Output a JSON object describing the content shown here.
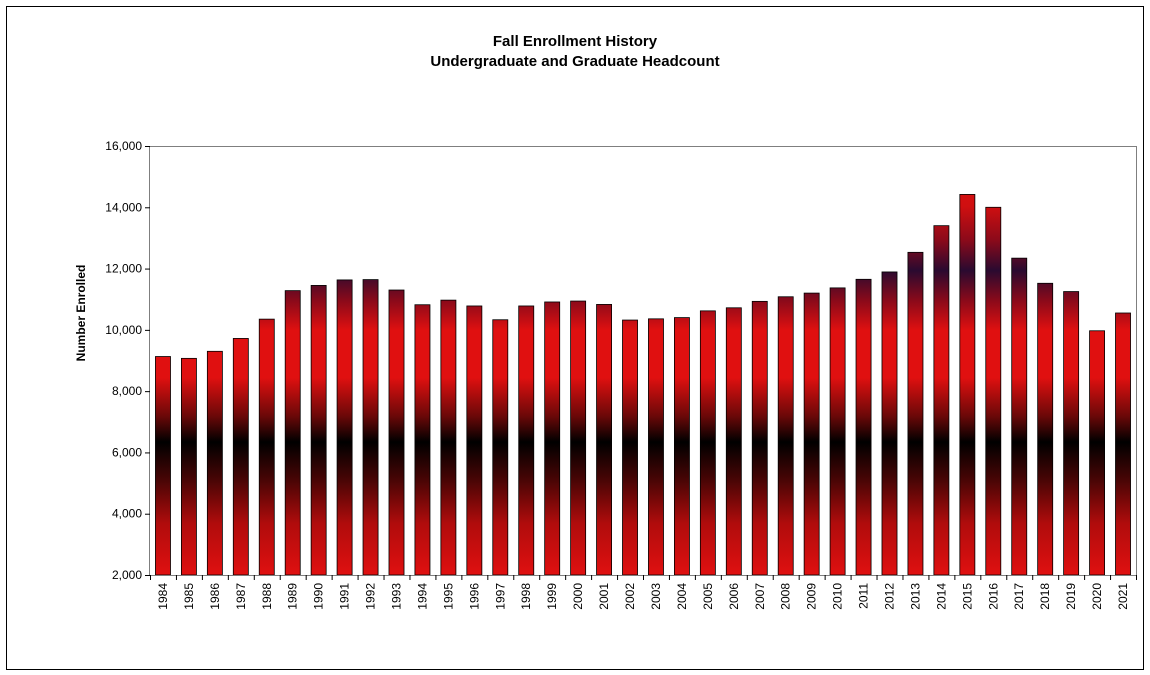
{
  "chart_data": {
    "type": "bar",
    "title": "Fall Enrollment  History",
    "subtitle": "Undergraduate and Graduate Headcount",
    "xlabel": "",
    "ylabel": "Number Enrolled",
    "ylim": [
      2000,
      16000
    ],
    "yticks": [
      "2,000",
      "4,000",
      "6,000",
      "8,000",
      "10,000",
      "12,000",
      "14,000",
      "16,000"
    ],
    "grid": false,
    "legend": "none",
    "colors": {
      "bar_main": "#e01010",
      "bar_dark": "#000000",
      "bar_mid": "#2a0a30",
      "plot_border": "#7f7f7f"
    },
    "categories": [
      "1984",
      "1985",
      "1986",
      "1987",
      "1988",
      "1989",
      "1990",
      "1991",
      "1992",
      "1993",
      "1994",
      "1995",
      "1996",
      "1997",
      "1998",
      "1999",
      "2000",
      "2001",
      "2002",
      "2003",
      "2004",
      "2005",
      "2006",
      "2007",
      "2008",
      "2009",
      "2010",
      "2011",
      "2012",
      "2013",
      "2014",
      "2015",
      "2016",
      "2017",
      "2018",
      "2019",
      "2020",
      "2021"
    ],
    "values": [
      9130,
      9070,
      9300,
      9720,
      10350,
      11280,
      11450,
      11630,
      11640,
      11300,
      10820,
      10970,
      10780,
      10330,
      10780,
      10910,
      10940,
      10830,
      10320,
      10360,
      10400,
      10620,
      10720,
      10930,
      11080,
      11200,
      11370,
      11650,
      11890,
      12530,
      13400,
      14420,
      14000,
      12340,
      11520,
      11250,
      9970,
      10550
    ]
  }
}
